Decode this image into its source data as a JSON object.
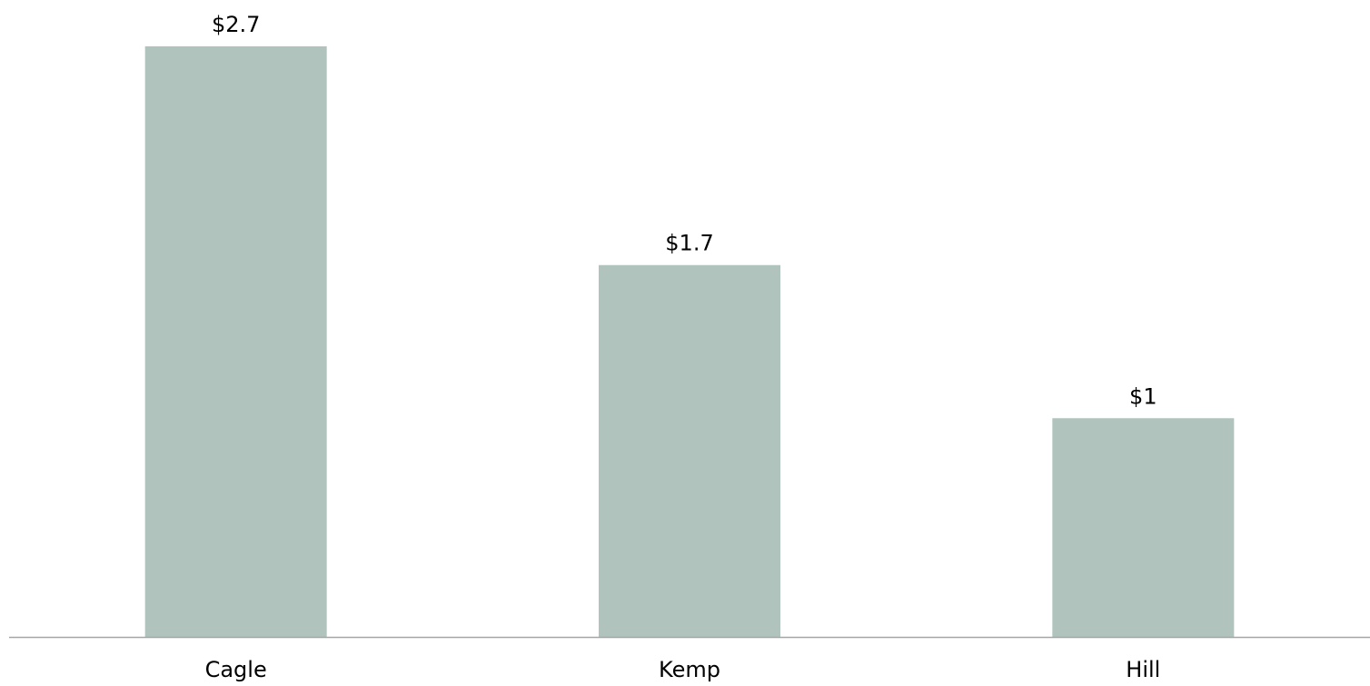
{
  "chart_data": {
    "type": "bar",
    "categories": [
      "Cagle",
      "Kemp",
      "Hill"
    ],
    "values": [
      2.7,
      1.7,
      1
    ],
    "value_labels": [
      "$2.7",
      "$1.7",
      "$1"
    ],
    "title": "",
    "xlabel": "",
    "ylabel": "",
    "ylim": [
      0,
      2.7
    ],
    "grid": false,
    "bar_color": "#b0c4bd",
    "axis_color": "#a6a6a6"
  }
}
